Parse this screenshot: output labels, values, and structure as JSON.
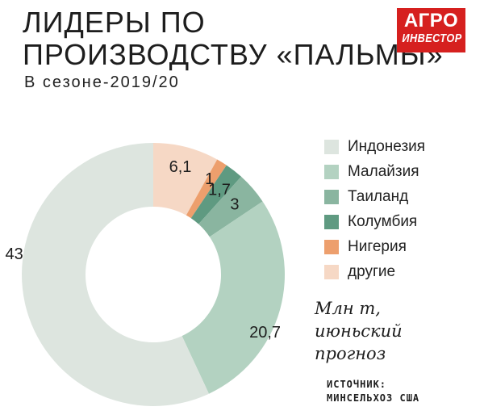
{
  "header": {
    "title_line1": "ЛИДЕРЫ ПО",
    "title_line2": "ПРОИЗВОДСТВУ «ПАЛЬМЫ»",
    "subtitle": "В сезоне-2019/20"
  },
  "logo": {
    "line1": "АГРО",
    "line2": "ИНВЕСТОР"
  },
  "chart_data": {
    "type": "pie",
    "donut": true,
    "unit_note": [
      "Млн т,",
      "июньский",
      "прогноз"
    ],
    "source": [
      "ИСТОЧНИК:",
      "МИНСЕЛЬХОЗ США"
    ],
    "slices": [
      {
        "name": "Индонезия",
        "value": 43,
        "label": "43",
        "color": "#dde5df"
      },
      {
        "name": "Малайзия",
        "value": 20.7,
        "label": "20,7",
        "color": "#b3d2c1"
      },
      {
        "name": "Таиланд",
        "value": 3,
        "label": "3",
        "color": "#8ab5a0"
      },
      {
        "name": "Колумбия",
        "value": 1.7,
        "label": "1,7",
        "color": "#5f9a81"
      },
      {
        "name": "Нигерия",
        "value": 1,
        "label": "1",
        "color": "#ed9f6d"
      },
      {
        "name": "другие",
        "value": 6.1,
        "label": "6,1",
        "color": "#f6d8c5"
      }
    ]
  }
}
